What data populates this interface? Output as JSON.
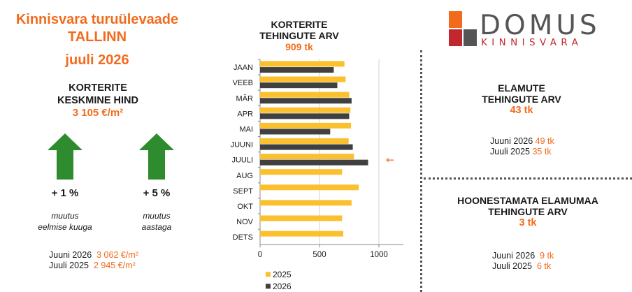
{
  "header": {
    "title_line1": "Kinnisvara turuülevaade",
    "title_line2": "TALLINN",
    "title_line3": "juuli 2026"
  },
  "price": {
    "label_line1": "KORTERITE",
    "label_line2": "KESKMINE HIND",
    "value": "3 105 €/m²"
  },
  "changes": [
    {
      "value": "+ 1 %",
      "label_line1": "muutus",
      "label_line2": "eelmise kuuga",
      "color": "#2e8b2e"
    },
    {
      "value": "+ 5 %",
      "label_line1": "muutus",
      "label_line2": "aastaga",
      "color": "#2e8b2e"
    }
  ],
  "price_history": [
    {
      "label": "Juuni 2026",
      "value": "3 062 €/m²"
    },
    {
      "label": "Juuli 2025",
      "value": "2 945 €/m²"
    }
  ],
  "chart_title": {
    "line1": "KORTERITE",
    "line2": "TEHINGUTE ARV",
    "total": "909 tk"
  },
  "chart_data": {
    "type": "bar",
    "orientation": "horizontal",
    "categories": [
      "JAAN",
      "VEEB",
      "MÄR",
      "APR",
      "MAI",
      "JUUNI",
      "JUULI",
      "AUG",
      "SEPT",
      "OKT",
      "NOV",
      "DETS"
    ],
    "series": [
      {
        "name": "2025",
        "color": "#fbc02d",
        "values": [
          710,
          720,
          750,
          760,
          765,
          745,
          790,
          690,
          830,
          770,
          690,
          700
        ]
      },
      {
        "name": "2026",
        "color": "#404040",
        "values": [
          620,
          650,
          770,
          750,
          590,
          780,
          909,
          null,
          null,
          null,
          null,
          null
        ]
      }
    ],
    "xlim": [
      0,
      1000
    ],
    "xticks": [
      "0",
      "500",
      "1000"
    ],
    "grid": true,
    "legend": "bottom-left",
    "highlight_category": "JUULI",
    "highlight_marker": "←"
  },
  "logo": {
    "word": "DOMUS",
    "sub": "KINNISVARA",
    "colors": [
      "#f26b1d",
      "#c1272d",
      "#555555"
    ]
  },
  "elamute": {
    "line1": "ELAMUTE",
    "line2": "TEHINGUTE ARV",
    "total": "43 tk",
    "rows": [
      {
        "label": "Juuni 2026",
        "value": "49 tk"
      },
      {
        "label": "Juuli 2025",
        "value": "35 tk"
      }
    ]
  },
  "maa": {
    "line1": "HOONESTAMATA ELAMUMAA",
    "line2": "TEHINGUTE ARV",
    "total": "3 tk",
    "rows": [
      {
        "label": "Juuni 2026",
        "value": "9 tk"
      },
      {
        "label": "Juuli 2025",
        "value": "6 tk"
      }
    ]
  }
}
